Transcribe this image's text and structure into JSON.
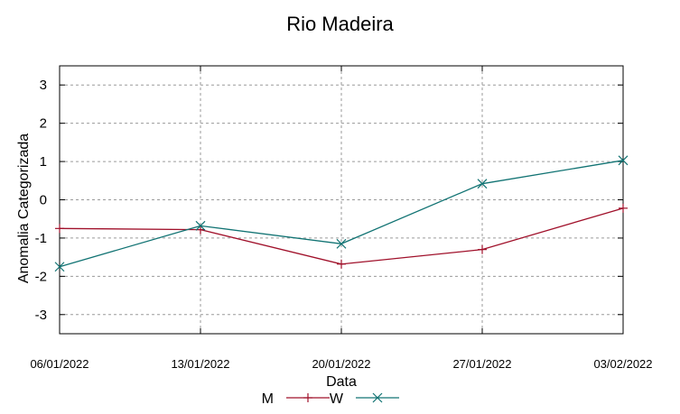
{
  "chart_data": {
    "type": "line",
    "title": "Rio Madeira",
    "xlabel": "Data",
    "ylabel": "Anomalia Categorizada",
    "ylim": [
      -3.5,
      3.5
    ],
    "yticks": [
      -3,
      -2,
      -1,
      0,
      1,
      2,
      3
    ],
    "grid": true,
    "legend_position": "bottom-center",
    "categories": [
      "06/01/2022",
      "13/01/2022",
      "20/01/2022",
      "27/01/2022",
      "03/02/2022"
    ],
    "series": [
      {
        "name": "M",
        "color": "#a0102a",
        "marker": "plus",
        "values": [
          -0.75,
          -0.78,
          -1.68,
          -1.3,
          -0.22
        ]
      },
      {
        "name": "W",
        "color": "#117373",
        "marker": "cross",
        "values": [
          -1.75,
          -0.68,
          -1.15,
          0.42,
          1.03
        ]
      }
    ]
  }
}
